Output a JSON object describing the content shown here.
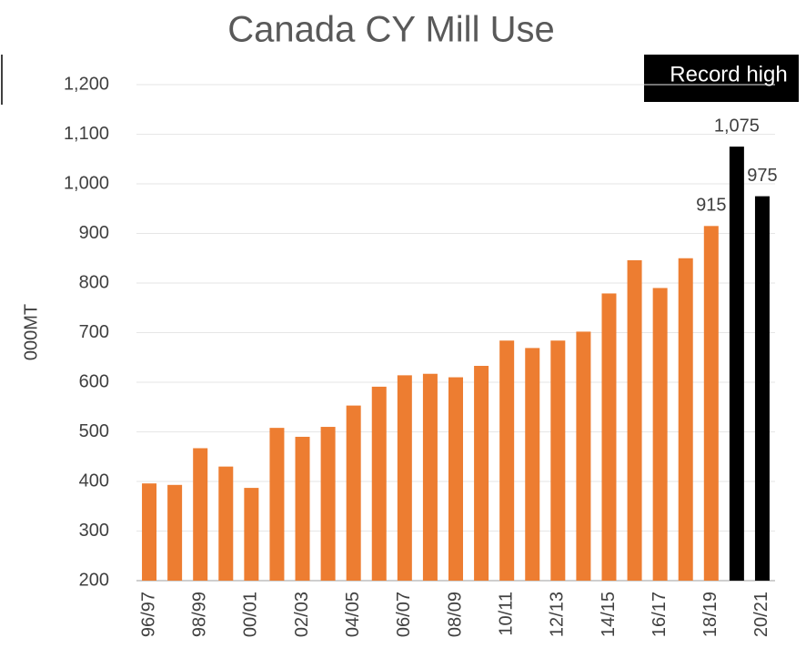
{
  "chart_data": {
    "type": "bar",
    "title": "Canada CY Mill Use",
    "y_label": "000MT",
    "annotation": "Record high",
    "categories": [
      "96/97",
      null,
      "98/99",
      null,
      "00/01",
      null,
      "02/03",
      null,
      "04/05",
      null,
      "06/07",
      null,
      "08/09",
      null,
      "10/11",
      null,
      "12/13",
      null,
      "14/15",
      null,
      "16/17",
      null,
      "18/19",
      null,
      "20/21"
    ],
    "values": [
      396,
      393,
      467,
      430,
      387,
      508,
      490,
      510,
      553,
      591,
      614,
      617,
      610,
      633,
      684,
      669,
      684,
      702,
      779,
      846,
      790,
      850,
      915,
      1075,
      975
    ],
    "value_labels": [
      null,
      null,
      null,
      null,
      null,
      null,
      null,
      null,
      null,
      null,
      null,
      null,
      null,
      null,
      null,
      null,
      null,
      null,
      null,
      null,
      null,
      null,
      "915",
      "1,075",
      "975"
    ],
    "colors": [
      "#ed7d31",
      "#ed7d31",
      "#ed7d31",
      "#ed7d31",
      "#ed7d31",
      "#ed7d31",
      "#ed7d31",
      "#ed7d31",
      "#ed7d31",
      "#ed7d31",
      "#ed7d31",
      "#ed7d31",
      "#ed7d31",
      "#ed7d31",
      "#ed7d31",
      "#ed7d31",
      "#ed7d31",
      "#ed7d31",
      "#ed7d31",
      "#ed7d31",
      "#ed7d31",
      "#ed7d31",
      "#ed7d31",
      "#000000",
      "#000000"
    ],
    "ylim": [
      200,
      1200
    ],
    "yticks": [
      200,
      300,
      400,
      500,
      600,
      700,
      800,
      900,
      {
        "value": 1000,
        "label": "1,000"
      },
      {
        "value": 1100,
        "label": "1,100"
      },
      {
        "value": 1200,
        "label": "1,200"
      }
    ],
    "grid": true
  }
}
